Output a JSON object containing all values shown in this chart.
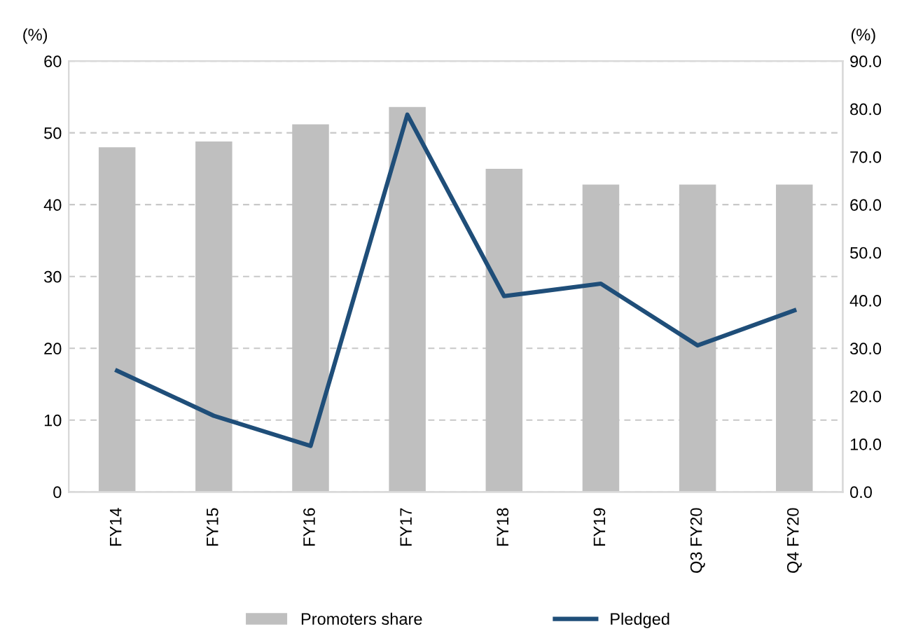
{
  "chart_data": {
    "type": "bar",
    "categories": [
      "FY14",
      "FY15",
      "FY16",
      "FY17",
      "FY18",
      "FY19",
      "Q3 FY20",
      "Q4 FY20"
    ],
    "series": [
      {
        "name": "Promoters share",
        "color": "#bfbfbf",
        "values": [
          48.0,
          48.8,
          51.2,
          53.6,
          45.0,
          42.8,
          42.8,
          42.8
        ]
      },
      {
        "name": "Pledged",
        "type": "line",
        "axis": "y2",
        "color": "#1f4e79",
        "values": [
          25.3,
          15.9,
          9.6,
          78.8,
          40.9,
          43.5,
          30.6,
          37.9
        ]
      }
    ],
    "ylabel": "(%)",
    "y2label": "(%)",
    "ylim": [
      0,
      60
    ],
    "yticks": [
      0,
      10,
      20,
      30,
      40,
      50,
      60
    ],
    "y2lim": [
      0,
      90
    ],
    "y2ticks": [
      {
        "value": 0,
        "label": "0.0"
      },
      {
        "value": 10,
        "label": "10.0"
      },
      {
        "value": 20,
        "label": "20.0"
      },
      {
        "value": 30,
        "label": "30.0"
      },
      {
        "value": 40,
        "label": "40.0"
      },
      {
        "value": 50,
        "label": "50.0"
      },
      {
        "value": 60,
        "label": "60.0"
      },
      {
        "value": 70,
        "label": "70.0"
      },
      {
        "value": 80,
        "label": "80.0"
      },
      {
        "value": 90,
        "label": "90.0"
      }
    ],
    "grid": "y",
    "legend": "bottom",
    "marker": "none",
    "line_style": "solid"
  }
}
